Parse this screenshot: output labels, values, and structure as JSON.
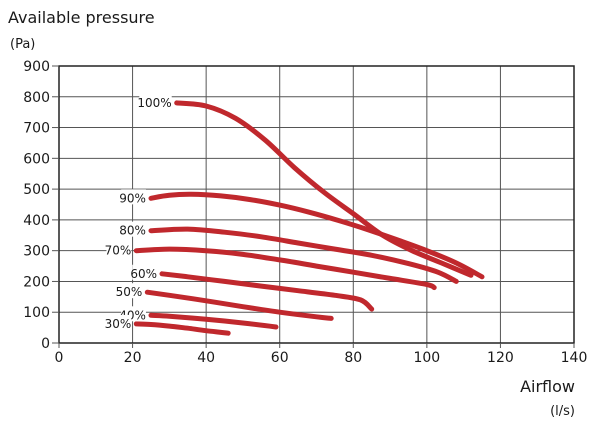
{
  "chart_data": {
    "type": "line",
    "title": "Available pressure",
    "y_unit": "(Pa)",
    "xlabel": "Airflow",
    "x_unit": "(l/s)",
    "xlim": [
      0,
      140
    ],
    "ylim": [
      0,
      900
    ],
    "x_ticks": [
      0,
      20,
      40,
      60,
      80,
      100,
      120,
      140
    ],
    "y_ticks": [
      0,
      100,
      200,
      300,
      400,
      500,
      600,
      700,
      800,
      900
    ],
    "grid": true,
    "line_color": "#c0282d",
    "series": [
      {
        "name": "100%",
        "x": [
          32,
          40,
          48,
          56,
          64,
          72,
          80,
          88,
          96,
          104,
          112
        ],
        "y": [
          780,
          770,
          730,
          660,
          570,
          490,
          420,
          350,
          300,
          260,
          220
        ]
      },
      {
        "name": "90%",
        "x": [
          25,
          30,
          36,
          44,
          52,
          60,
          68,
          76,
          84,
          92,
          100,
          108,
          115
        ],
        "y": [
          470,
          480,
          483,
          478,
          466,
          448,
          425,
          398,
          368,
          335,
          300,
          260,
          215
        ]
      },
      {
        "name": "80%",
        "x": [
          25,
          35,
          45,
          55,
          65,
          75,
          85,
          95,
          103,
          108
        ],
        "y": [
          365,
          370,
          360,
          345,
          325,
          305,
          285,
          258,
          230,
          200
        ]
      },
      {
        "name": "70%",
        "x": [
          21,
          30,
          40,
          50,
          60,
          70,
          80,
          90,
          100,
          102
        ],
        "y": [
          300,
          305,
          300,
          288,
          270,
          250,
          230,
          210,
          190,
          180
        ]
      },
      {
        "name": "60%",
        "x": [
          28,
          35,
          45,
          55,
          65,
          75,
          82,
          85
        ],
        "y": [
          225,
          215,
          200,
          185,
          170,
          155,
          140,
          110
        ]
      },
      {
        "name": "50%",
        "x": [
          24,
          30,
          40,
          50,
          60,
          70,
          74
        ],
        "y": [
          165,
          155,
          137,
          118,
          100,
          85,
          80
        ]
      },
      {
        "name": "40%",
        "x": [
          25,
          30,
          40,
          50,
          59
        ],
        "y": [
          90,
          87,
          77,
          65,
          52
        ]
      },
      {
        "name": "30%",
        "x": [
          21,
          25,
          30,
          35,
          40,
          46
        ],
        "y": [
          62,
          60,
          55,
          48,
          40,
          32
        ]
      }
    ]
  }
}
